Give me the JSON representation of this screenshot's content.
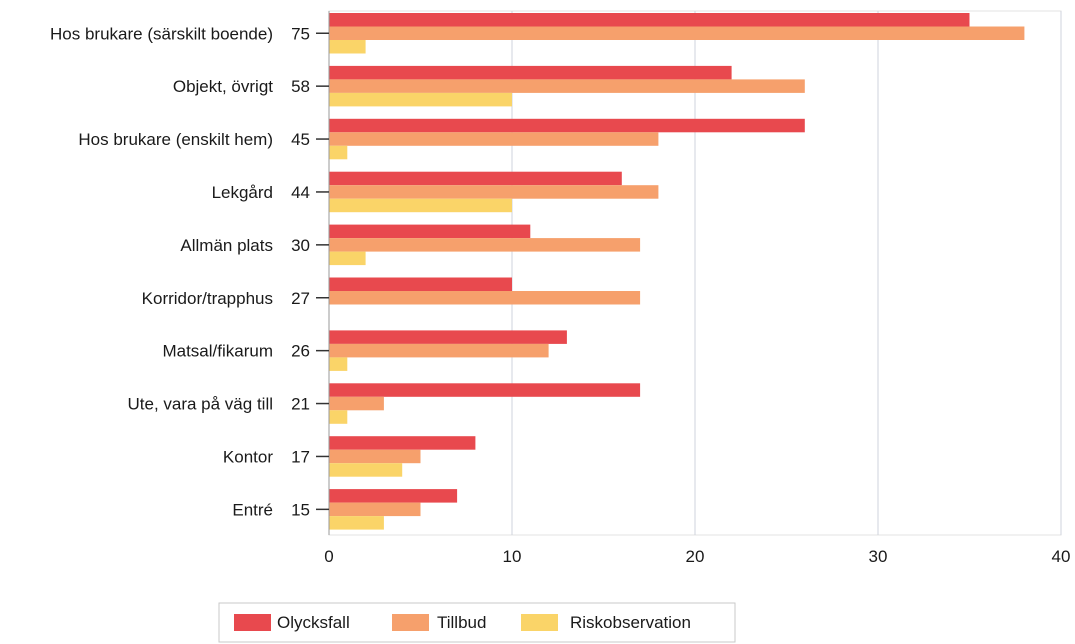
{
  "chart_data": {
    "type": "bar",
    "orientation": "horizontal",
    "categories": [
      "Hos brukare (särskilt boende)",
      "Objekt, övrigt",
      "Hos brukare (enskilt hem)",
      "Lekgård",
      "Allmän plats",
      "Korridor/trapphus",
      "Matsal/fikarum",
      "Ute, vara på väg till",
      "Kontor",
      "Entré"
    ],
    "category_totals": [
      75,
      58,
      45,
      44,
      30,
      27,
      26,
      21,
      17,
      15
    ],
    "series": [
      {
        "name": "Olycksfall",
        "color": "#e8494e",
        "values": [
          35,
          22,
          26,
          16,
          11,
          10,
          13,
          17,
          8,
          7
        ]
      },
      {
        "name": "Tillbud",
        "color": "#f6a06c",
        "values": [
          38,
          26,
          18,
          18,
          17,
          17,
          12,
          3,
          5,
          5
        ]
      },
      {
        "name": "Riskobservation",
        "color": "#fad468",
        "values": [
          2,
          10,
          1,
          10,
          2,
          0,
          1,
          1,
          4,
          3
        ]
      }
    ],
    "xlim": [
      0,
      40
    ],
    "xticks": [
      0,
      10,
      20,
      30,
      40
    ],
    "grid": true,
    "legend_position": "bottom-center",
    "title": "",
    "xlabel": "",
    "ylabel": ""
  }
}
